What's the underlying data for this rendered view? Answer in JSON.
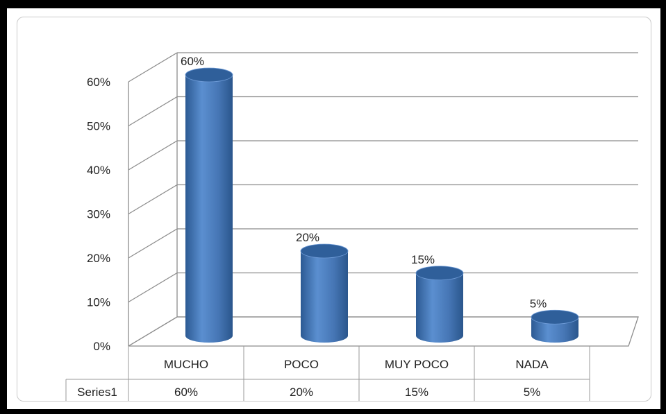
{
  "chart_data": {
    "type": "bar",
    "style": "3d-cylinder",
    "categories": [
      "MUCHO",
      "POCO",
      "MUY POCO",
      "NADA"
    ],
    "series": [
      {
        "name": "Series1",
        "values": [
          60,
          20,
          15,
          5
        ],
        "labels": [
          "60%",
          "20%",
          "15%",
          "5%"
        ]
      }
    ],
    "y_ticks": [
      "0%",
      "10%",
      "20%",
      "30%",
      "40%",
      "50%",
      "60%"
    ],
    "ylim": [
      0,
      60
    ],
    "grid": true,
    "data_table": true,
    "colors": {
      "bar": "#4a7ebb",
      "bar_top": "#2f5f9a",
      "grid": "#8c8c8c"
    }
  }
}
